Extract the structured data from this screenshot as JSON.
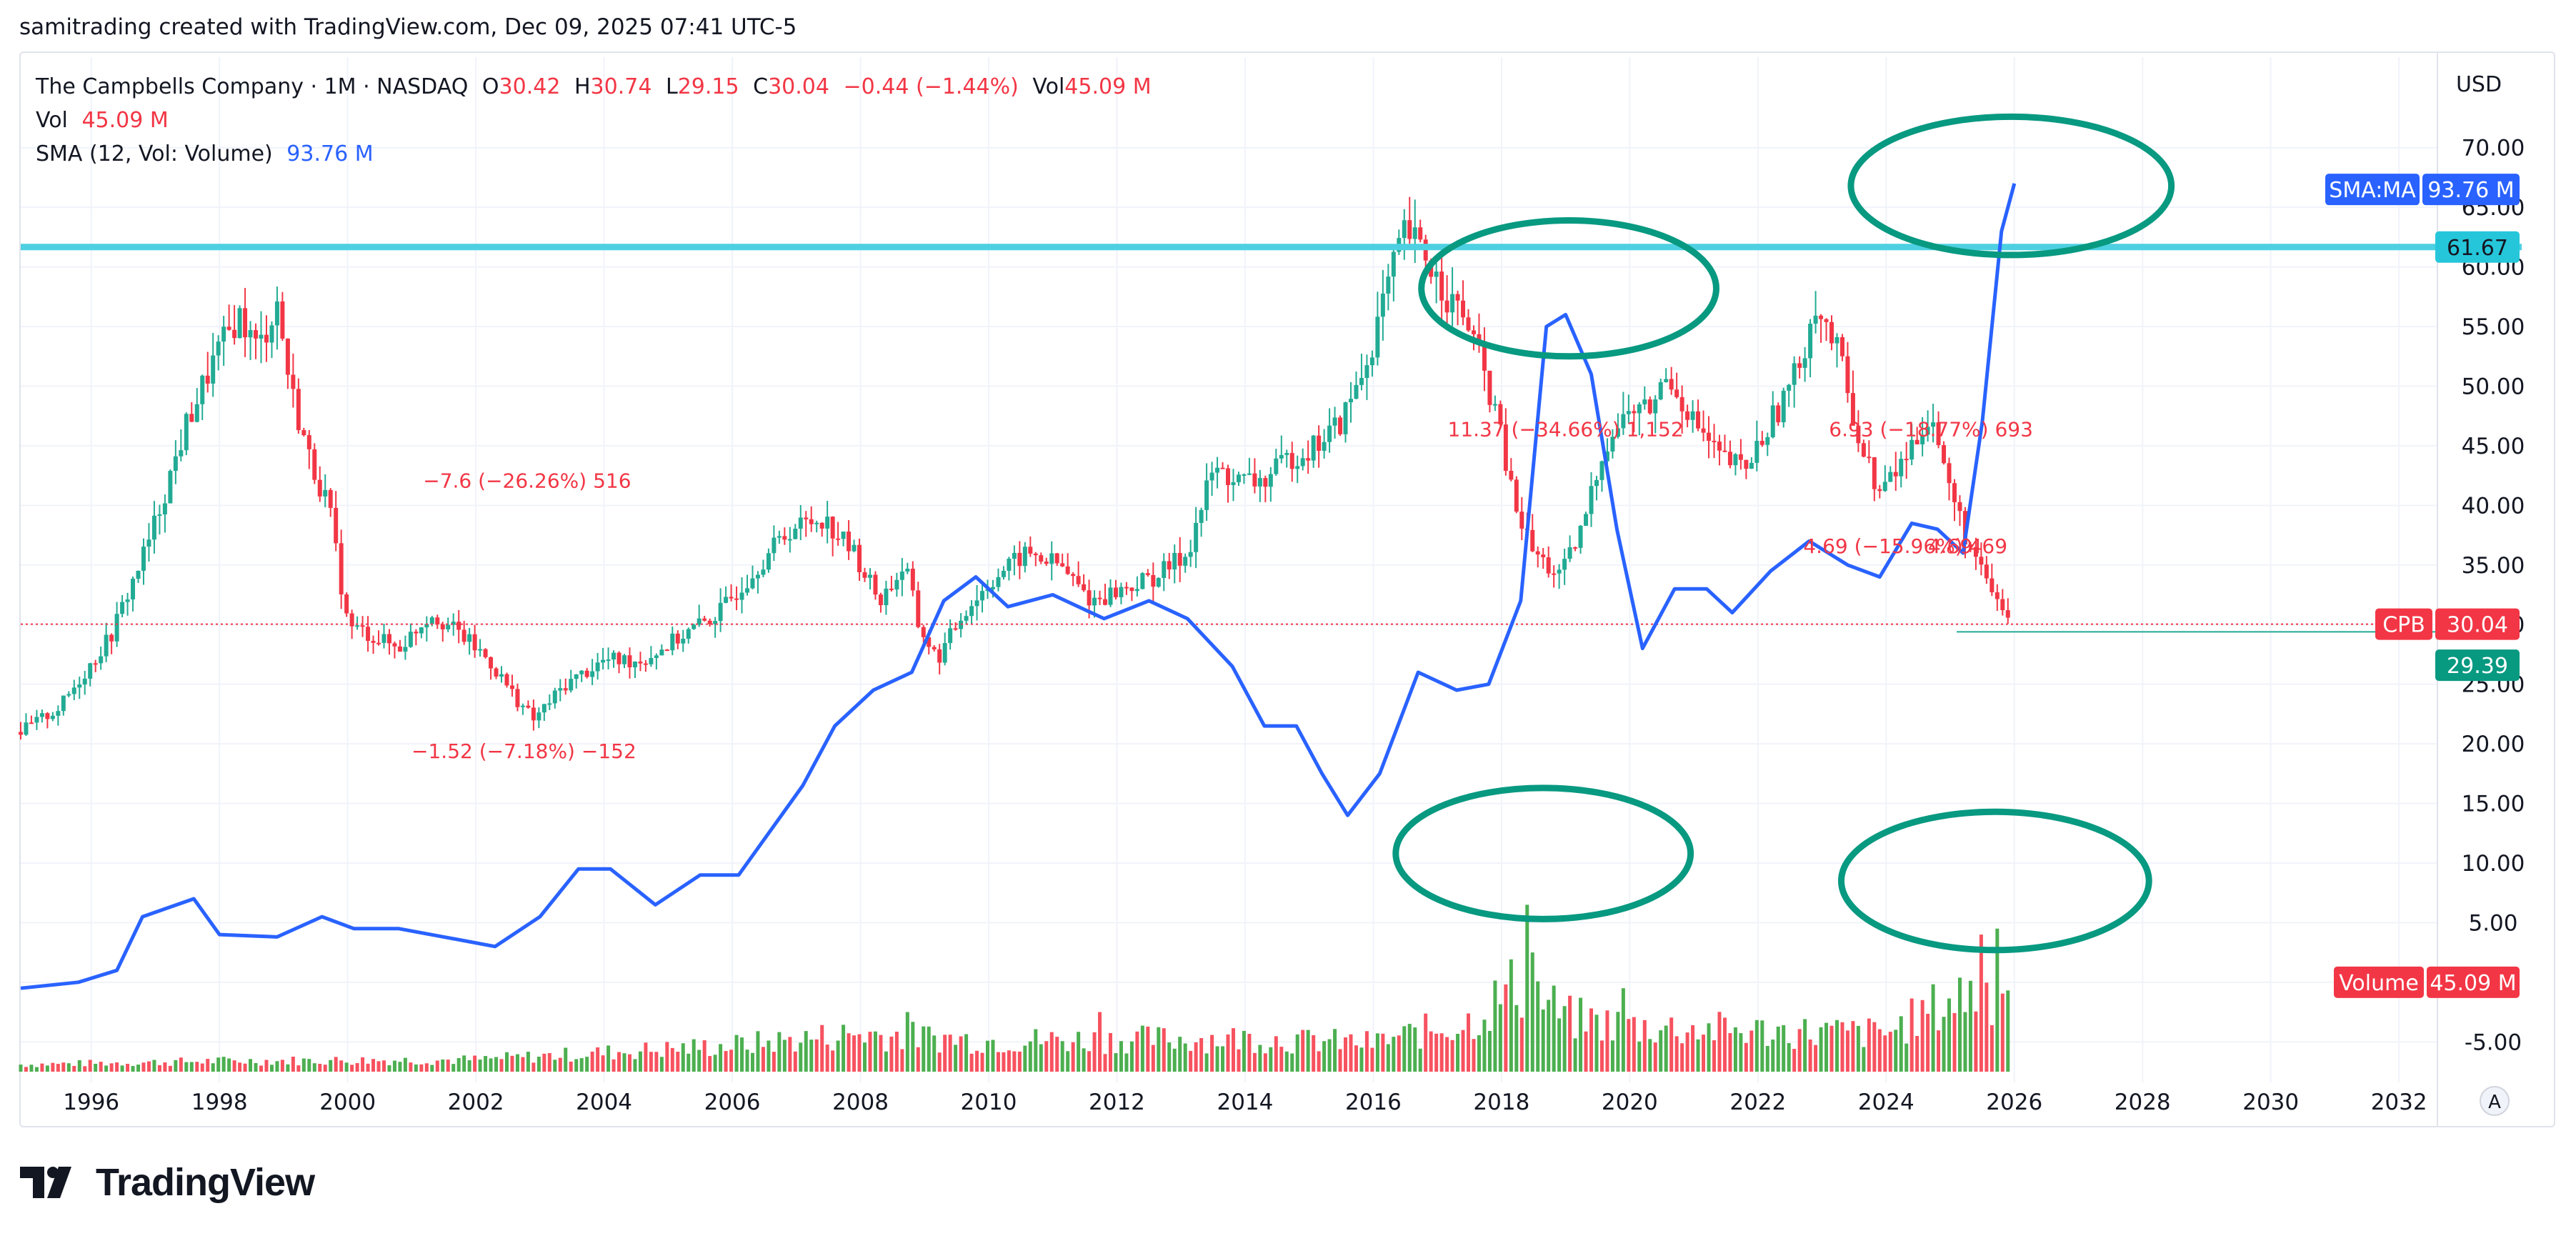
{
  "header": {
    "caption": "samitrading created with TradingView.com, Dec 09, 2025 07:41 UTC-5"
  },
  "legend": {
    "symbol": "The Campbells Company · 1M · NASDAQ",
    "o_label": "O",
    "o_value": "30.42",
    "h_label": "H",
    "h_value": "30.74",
    "l_label": "L",
    "l_value": "29.15",
    "c_label": "C",
    "c_value": "30.04",
    "change": "−0.44 (−1.44%)",
    "vol_label": "Vol",
    "vol_value": "45.09 M",
    "vol_row_label": "Vol",
    "vol_row_value": "45.09 M",
    "sma_label": "SMA (12, Vol: Volume)",
    "sma_value": "93.76 M"
  },
  "branding": {
    "logo_text": "TradingView",
    "auto_button": "A"
  },
  "colors": {
    "up": "#22ab94",
    "down": "#f23645",
    "vol_up": "#4caf50",
    "vol_down": "#f7525f",
    "sma": "#2962ff",
    "hline": "#4dd0e1",
    "circle": "#089981",
    "grid": "#f0f3fa"
  },
  "chart_data": {
    "type": "candlestick",
    "currency": "USD",
    "ylim": [
      -7.5,
      74
    ],
    "price_ticks": [
      "70.00",
      "65.00",
      "60.00",
      "55.00",
      "50.00",
      "45.00",
      "40.00",
      "35.00",
      "30.00",
      "25.00",
      "20.00",
      "15.00",
      "10.00",
      "5.00",
      "0.00",
      "-5.00"
    ],
    "x_ticks": [
      "1996",
      "1998",
      "2000",
      "2002",
      "2004",
      "2006",
      "2008",
      "2010",
      "2012",
      "2014",
      "2016",
      "2018",
      "2020",
      "2022",
      "2024",
      "2026",
      "2028",
      "2030",
      "2032"
    ],
    "xlim": [
      1994.9,
      2032.6
    ],
    "data_end": 2025.95,
    "price_path": [
      [
        1994.9,
        21
      ],
      [
        1995.5,
        23
      ],
      [
        1996.3,
        29
      ],
      [
        1996.9,
        37
      ],
      [
        1997.5,
        47
      ],
      [
        1997.9,
        52
      ],
      [
        1998.3,
        56
      ],
      [
        1998.6,
        53
      ],
      [
        1998.9,
        57
      ],
      [
        1999.1,
        50
      ],
      [
        1999.4,
        44
      ],
      [
        1999.7,
        40
      ],
      [
        2000.0,
        30
      ],
      [
        2000.4,
        29
      ],
      [
        2000.8,
        28
      ],
      [
        2001.3,
        31
      ],
      [
        2001.8,
        29
      ],
      [
        2002.2,
        27
      ],
      [
        2002.6,
        24
      ],
      [
        2002.9,
        22
      ],
      [
        2003.4,
        25
      ],
      [
        2004.0,
        27
      ],
      [
        2004.6,
        27
      ],
      [
        2005.2,
        29
      ],
      [
        2005.8,
        31
      ],
      [
        2006.4,
        35
      ],
      [
        2006.9,
        38
      ],
      [
        2007.4,
        39
      ],
      [
        2007.9,
        36
      ],
      [
        2008.3,
        32
      ],
      [
        2008.7,
        35
      ],
      [
        2008.9,
        30
      ],
      [
        2009.2,
        27
      ],
      [
        2009.6,
        31
      ],
      [
        2010.1,
        34
      ],
      [
        2010.6,
        36
      ],
      [
        2011.1,
        35
      ],
      [
        2011.6,
        32
      ],
      [
        2012.1,
        33
      ],
      [
        2012.6,
        34
      ],
      [
        2013.1,
        36
      ],
      [
        2013.5,
        43
      ],
      [
        2013.9,
        42
      ],
      [
        2014.3,
        42
      ],
      [
        2014.7,
        44
      ],
      [
        2015.1,
        45
      ],
      [
        2015.5,
        47
      ],
      [
        2015.9,
        52
      ],
      [
        2016.2,
        58
      ],
      [
        2016.5,
        63
      ],
      [
        2016.8,
        61
      ],
      [
        2017.1,
        58
      ],
      [
        2017.5,
        55
      ],
      [
        2017.9,
        48
      ],
      [
        2018.2,
        40
      ],
      [
        2018.5,
        36
      ],
      [
        2018.9,
        34
      ],
      [
        2019.2,
        37
      ],
      [
        2019.6,
        45
      ],
      [
        2020.0,
        48
      ],
      [
        2020.3,
        48
      ],
      [
        2020.6,
        51
      ],
      [
        2021.0,
        47
      ],
      [
        2021.4,
        44
      ],
      [
        2021.8,
        43
      ],
      [
        2022.2,
        47
      ],
      [
        2022.6,
        51
      ],
      [
        2022.9,
        57
      ],
      [
        2023.3,
        52
      ],
      [
        2023.6,
        45
      ],
      [
        2023.9,
        41
      ],
      [
        2024.3,
        44
      ],
      [
        2024.7,
        48
      ],
      [
        2024.9,
        43
      ],
      [
        2025.2,
        38
      ],
      [
        2025.5,
        34
      ],
      [
        2025.95,
        30.04
      ]
    ],
    "volume_path": [
      [
        1994.9,
        0.6
      ],
      [
        1998.0,
        0.9
      ],
      [
        2002.0,
        1.0
      ],
      [
        2006.0,
        2.2
      ],
      [
        2008.0,
        3.2
      ],
      [
        2010.0,
        2.6
      ],
      [
        2014.0,
        2.8
      ],
      [
        2016.0,
        2.4
      ],
      [
        2017.5,
        4.2
      ],
      [
        2018.3,
        7.5
      ],
      [
        2019.0,
        4.5
      ],
      [
        2020.0,
        3.8
      ],
      [
        2022.0,
        3.4
      ],
      [
        2024.0,
        3.2
      ],
      [
        2025.2,
        6.5
      ],
      [
        2025.95,
        7.0
      ]
    ],
    "volume_spikes": [
      {
        "x": 2018.4,
        "v": 14
      },
      {
        "x": 2018.5,
        "v": 10
      },
      {
        "x": 2025.5,
        "v": 11.5
      },
      {
        "x": 2025.7,
        "v": 12
      },
      {
        "x": 2019.9,
        "v": 7
      },
      {
        "x": 2008.7,
        "v": 5
      },
      {
        "x": 2011.7,
        "v": 5
      },
      {
        "x": 2014.9,
        "v": 3.5
      }
    ],
    "sma_path": [
      [
        1994.9,
        -0.5
      ],
      [
        1995.8,
        0
      ],
      [
        1996.4,
        1
      ],
      [
        1996.8,
        5.5
      ],
      [
        1997.6,
        7
      ],
      [
        1998.0,
        4
      ],
      [
        1998.9,
        3.8
      ],
      [
        1999.6,
        5.5
      ],
      [
        2000.1,
        4.5
      ],
      [
        2000.8,
        4.5
      ],
      [
        2001.5,
        3.8
      ],
      [
        2002.3,
        3.0
      ],
      [
        2003.0,
        5.5
      ],
      [
        2003.6,
        9.5
      ],
      [
        2004.1,
        9.5
      ],
      [
        2004.8,
        6.5
      ],
      [
        2005.5,
        9
      ],
      [
        2006.1,
        9
      ],
      [
        2006.7,
        13.5
      ],
      [
        2007.1,
        16.5
      ],
      [
        2007.6,
        21.5
      ],
      [
        2008.2,
        24.5
      ],
      [
        2008.8,
        26
      ],
      [
        2009.3,
        32
      ],
      [
        2009.8,
        34
      ],
      [
        2010.3,
        31.5
      ],
      [
        2011.0,
        32.5
      ],
      [
        2011.8,
        30.5
      ],
      [
        2012.5,
        32
      ],
      [
        2013.1,
        30.5
      ],
      [
        2013.8,
        26.5
      ],
      [
        2014.3,
        21.5
      ],
      [
        2014.8,
        21.5
      ],
      [
        2015.2,
        17.5
      ],
      [
        2015.6,
        14
      ],
      [
        2016.1,
        17.5
      ],
      [
        2016.7,
        26
      ],
      [
        2017.3,
        24.5
      ],
      [
        2017.8,
        25
      ],
      [
        2018.3,
        32
      ],
      [
        2018.7,
        55
      ],
      [
        2019.0,
        56
      ],
      [
        2019.4,
        51
      ],
      [
        2019.8,
        38
      ],
      [
        2020.2,
        28
      ],
      [
        2020.7,
        33
      ],
      [
        2021.2,
        33
      ],
      [
        2021.6,
        31
      ],
      [
        2022.2,
        34.5
      ],
      [
        2022.8,
        37
      ],
      [
        2023.4,
        35
      ],
      [
        2023.9,
        34
      ],
      [
        2024.4,
        38.5
      ],
      [
        2024.8,
        38
      ],
      [
        2025.2,
        36
      ],
      [
        2025.5,
        47
      ],
      [
        2025.8,
        63
      ],
      [
        2026.0,
        67
      ]
    ],
    "hline": {
      "price": 61.67,
      "label": "61.67"
    },
    "labels": {
      "sma_tag": "SMA:MA",
      "sma_value": "93.76 M",
      "sma_price": 66.5,
      "cpb_tag": "CPB",
      "cpb_value": "30.04",
      "cpb_price": 30.04,
      "low_value": "29.39",
      "low_price": 29.39,
      "volume_tag": "Volume",
      "volume_value": "45.09 M",
      "volume_price": 0.0
    },
    "annotations": [
      {
        "text": "−1.52 (−7.18%) −152",
        "x": 2002.75,
        "y": 18.8
      },
      {
        "text": "−7.6 (−26.26%) 516",
        "x": 2002.8,
        "y": 41.5
      },
      {
        "text": "11.37 (−34.66%) 1,152",
        "x": 2019.0,
        "y": 45.8
      },
      {
        "text": "6.93 (−18.77%) 693",
        "x": 2024.7,
        "y": 45.8
      },
      {
        "text": "4.69 (−15.96%) 469",
        "x": 2024.3,
        "y": 36
      },
      {
        "text": "4.69",
        "x": 2025.0,
        "y": 36
      }
    ],
    "circles": [
      {
        "x": 2019.05,
        "y": 58.2,
        "rx": 2.3,
        "ry": 5.7
      },
      {
        "x": 2025.95,
        "y": 66.8,
        "rx": 2.5,
        "ry": 5.8
      },
      {
        "x": 2018.65,
        "y": 10.8,
        "rx": 2.3,
        "ry": 5.5
      },
      {
        "x": 2025.7,
        "y": 8.5,
        "rx": 2.4,
        "ry": 5.8
      }
    ]
  }
}
